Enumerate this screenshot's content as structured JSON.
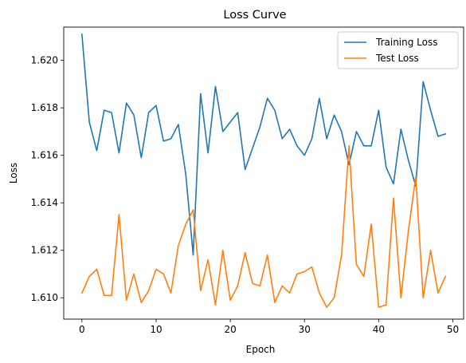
{
  "chart_data": {
    "type": "line",
    "title": "Loss Curve",
    "xlabel": "Epoch",
    "ylabel": "Loss",
    "xlim": [
      -2.45,
      51.45
    ],
    "ylim": [
      1.6091,
      1.6214
    ],
    "x_ticks": [
      0,
      10,
      20,
      30,
      40,
      50
    ],
    "y_ticks": [
      1.61,
      1.612,
      1.614,
      1.616,
      1.618,
      1.62
    ],
    "y_tick_labels": [
      "1.610",
      "1.612",
      "1.614",
      "1.616",
      "1.618",
      "1.620"
    ],
    "grid": false,
    "legend_position": "top-right",
    "x": [
      0,
      1,
      2,
      3,
      4,
      5,
      6,
      7,
      8,
      9,
      10,
      11,
      12,
      13,
      14,
      15,
      16,
      17,
      18,
      19,
      20,
      21,
      22,
      23,
      24,
      25,
      26,
      27,
      28,
      29,
      30,
      31,
      32,
      33,
      34,
      35,
      36,
      37,
      38,
      39,
      40,
      41,
      42,
      43,
      44,
      45,
      46,
      47,
      48,
      49
    ],
    "series": [
      {
        "name": "Training Loss",
        "color": "#1f77b4",
        "values": [
          1.6211,
          1.6174,
          1.6162,
          1.6179,
          1.6178,
          1.6161,
          1.6182,
          1.6177,
          1.6159,
          1.6178,
          1.6181,
          1.6166,
          1.6167,
          1.6173,
          1.6152,
          1.6118,
          1.6186,
          1.6161,
          1.6189,
          1.617,
          1.6174,
          1.6178,
          1.6154,
          1.6163,
          1.6172,
          1.6184,
          1.6179,
          1.6167,
          1.6171,
          1.6164,
          1.616,
          1.6167,
          1.6184,
          1.6167,
          1.6177,
          1.617,
          1.6156,
          1.617,
          1.6164,
          1.6164,
          1.6179,
          1.6155,
          1.6148,
          1.6171,
          1.6158,
          1.6147,
          1.6191,
          1.6179,
          1.6168,
          1.6169
        ]
      },
      {
        "name": "Test Loss",
        "color": "#ff7f0e",
        "values": [
          1.6102,
          1.6109,
          1.6112,
          1.6101,
          1.6101,
          1.6135,
          1.6099,
          1.611,
          1.6098,
          1.6103,
          1.6112,
          1.611,
          1.6102,
          1.6122,
          1.6131,
          1.6137,
          1.6103,
          1.6116,
          1.6097,
          1.612,
          1.6099,
          1.6105,
          1.6119,
          1.6106,
          1.6105,
          1.6118,
          1.6098,
          1.6105,
          1.6102,
          1.611,
          1.6111,
          1.6113,
          1.6102,
          1.6096,
          1.61,
          1.6118,
          1.6164,
          1.6114,
          1.6109,
          1.6131,
          1.6096,
          1.6097,
          1.6142,
          1.61,
          1.6128,
          1.6151,
          1.61,
          1.612,
          1.6102,
          1.6109
        ]
      }
    ]
  }
}
